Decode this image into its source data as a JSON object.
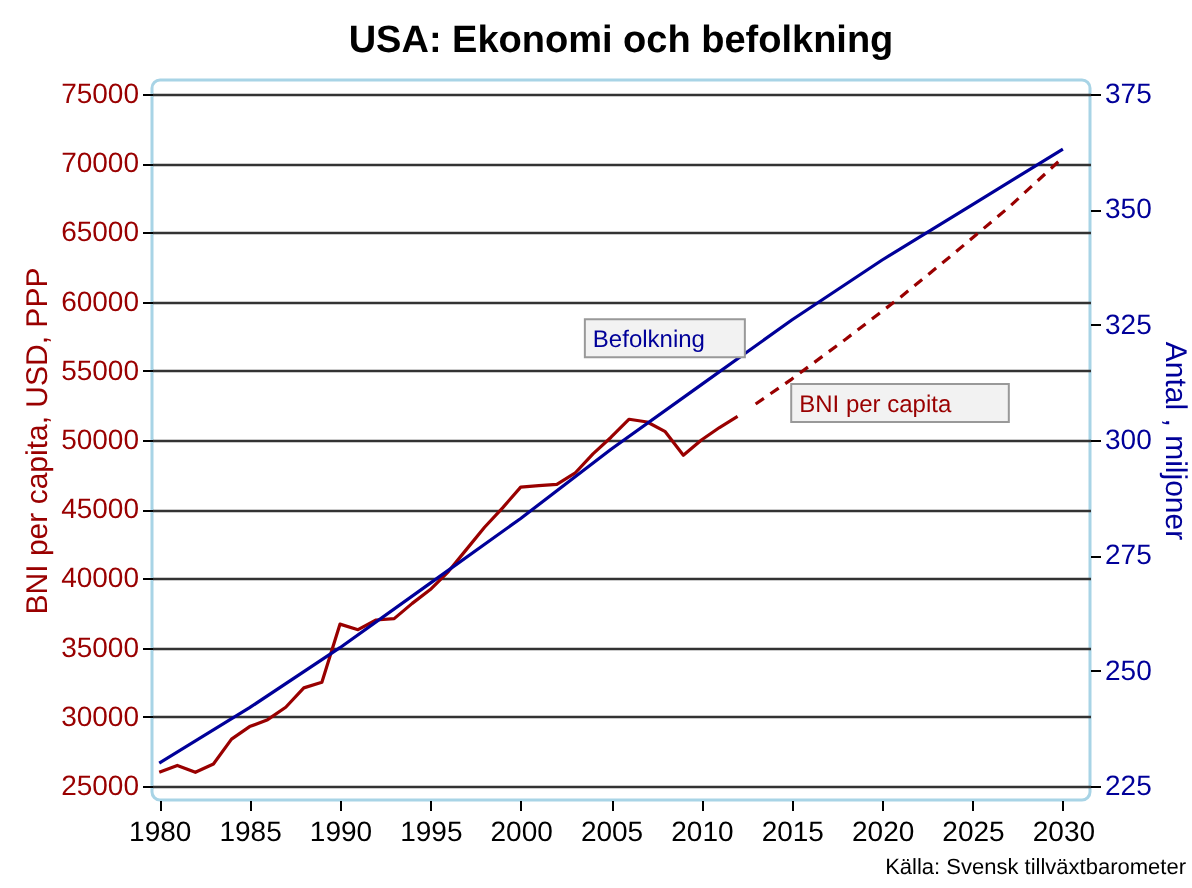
{
  "chart_data": {
    "type": "line",
    "title": "USA: Ekonomi och befolkning",
    "ylabel": "BNI per capita, USD, PPP",
    "y2label": "Antal , miljoner",
    "annotations": [
      "Källa: Svensk tillväxtbarometer"
    ],
    "xlim": [
      1979.6,
      2031.5
    ],
    "xticks": [
      1980,
      1985,
      1990,
      1995,
      2000,
      2005,
      2010,
      2015,
      2020,
      2025,
      2030
    ],
    "ylim": [
      24000,
      76000
    ],
    "yticks": [
      25000,
      30000,
      35000,
      40000,
      45000,
      50000,
      55000,
      60000,
      65000,
      70000,
      75000
    ],
    "y2lim": [
      222,
      378
    ],
    "y2ticks": [
      225,
      250,
      275,
      300,
      325,
      350,
      375
    ],
    "grid": "y",
    "series": [
      {
        "name": "BNI per capita",
        "color": "#990000",
        "line_style": "solid",
        "x": [
          1980,
          1981,
          1982,
          1983,
          1984,
          1985,
          1986,
          1987,
          1988,
          1989,
          1990,
          1991,
          1992,
          1993,
          1994,
          1995,
          1996,
          1997,
          1998,
          1999,
          2000,
          2001,
          2002,
          2003,
          2004,
          2005,
          2006,
          2007,
          2008,
          2009,
          2010,
          2011,
          2012
        ],
        "values": [
          26000,
          26500,
          26000,
          26600,
          28400,
          29300,
          29800,
          30700,
          32100,
          32500,
          36700,
          36300,
          37000,
          37100,
          38200,
          39200,
          40500,
          42100,
          43700,
          45100,
          46600,
          46700,
          46800,
          47600,
          49000,
          50200,
          51500,
          51300,
          50600,
          48900,
          50000,
          50900,
          51700
        ]
      },
      {
        "color": "#990000",
        "line_style": "dashed",
        "x": [
          2013,
          2015,
          2018,
          2021,
          2024,
          2027,
          2030
        ],
        "values": [
          52600,
          54400,
          57300,
          60300,
          63500,
          66800,
          70400
        ]
      },
      {
        "name": "Befolkning",
        "color": "#000099",
        "line_style": "solid",
        "axis": "y2",
        "x": [
          1980,
          1985,
          1990,
          1995,
          2000,
          2005,
          2010,
          2015,
          2020,
          2025,
          2030
        ],
        "values": [
          230,
          242,
          255,
          269,
          283,
          298,
          312,
          326,
          339,
          351,
          363
        ]
      }
    ]
  }
}
